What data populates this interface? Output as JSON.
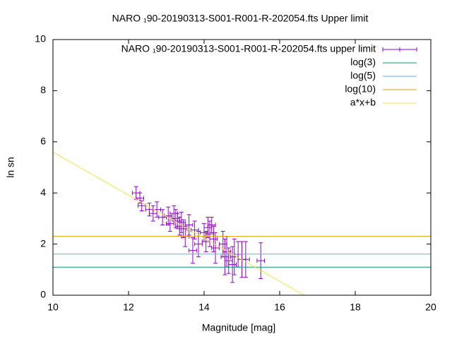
{
  "chart_data": {
    "type": "scatter",
    "title": "NARO ₁90-20190313-S001-R001-R-202054.fts Upper limit",
    "x_label": "Magnitude [mag]",
    "y_label": "ln sn",
    "xlim": [
      10,
      20
    ],
    "xticks": [
      10,
      12,
      14,
      16,
      18,
      20
    ],
    "ylim": [
      0,
      10
    ],
    "yticks": [
      0,
      2,
      4,
      6,
      8,
      10
    ],
    "legend": "top-right",
    "series": [
      {
        "name": "NARO ₁90-20190313-S001-R001-R-202054.fts upper limit",
        "type": "errorbars",
        "color": "#9400d3",
        "x": [
          12.2,
          12.3,
          12.35,
          12.55,
          12.65,
          12.75,
          12.9,
          13.05,
          13.1,
          13.2,
          13.25,
          13.3,
          13.35,
          13.4,
          13.45,
          13.5,
          13.6,
          13.7,
          13.75,
          13.85,
          14.0,
          14.05,
          14.1,
          14.15,
          14.2,
          14.25,
          14.3,
          14.5,
          14.55,
          14.6,
          14.65,
          14.75,
          14.8,
          14.9,
          15.0,
          15.1,
          15.5
        ],
        "values": [
          4.0,
          3.8,
          3.5,
          3.35,
          3.2,
          3.35,
          3.05,
          3.1,
          2.8,
          3.2,
          3.0,
          2.9,
          2.7,
          2.85,
          2.6,
          2.3,
          2.75,
          1.75,
          2.55,
          2.0,
          2.45,
          2.1,
          2.65,
          2.4,
          2.75,
          2.2,
          1.85,
          2.0,
          1.5,
          1.7,
          1.35,
          1.2,
          1.5,
          1.6,
          1.4,
          1.4,
          1.35
        ],
        "errors": [
          0.25,
          0.2,
          0.2,
          0.25,
          0.3,
          0.3,
          0.3,
          0.35,
          0.3,
          0.3,
          0.35,
          0.3,
          0.35,
          0.4,
          0.35,
          0.4,
          0.4,
          0.5,
          0.35,
          0.5,
          0.35,
          0.4,
          0.4,
          0.5,
          0.3,
          0.5,
          0.6,
          0.5,
          0.7,
          0.6,
          0.5,
          0.7,
          0.7,
          0.5,
          0.7,
          0.7,
          0.7
        ],
        "xerrors": [
          0.1,
          0.1,
          0.1,
          0.1,
          0.1,
          0.1,
          0.1,
          0.1,
          0.1,
          0.1,
          0.1,
          0.1,
          0.1,
          0.1,
          0.1,
          0.1,
          0.1,
          0.1,
          0.1,
          0.1,
          0.1,
          0.1,
          0.1,
          0.1,
          0.1,
          0.1,
          0.1,
          0.1,
          0.1,
          0.1,
          0.1,
          0.1,
          0.1,
          0.1,
          0.1,
          0.1,
          0.1
        ]
      },
      {
        "name": "log(3)",
        "type": "line",
        "color": "#009e73",
        "x": [
          10,
          20
        ],
        "values": [
          1.0986,
          1.0986
        ]
      },
      {
        "name": "log(5)",
        "type": "line",
        "color": "#56b4e9",
        "x": [
          10,
          20
        ],
        "values": [
          1.6094,
          1.6094
        ]
      },
      {
        "name": "log(10)",
        "type": "line",
        "color": "#e69f00",
        "x": [
          10,
          20
        ],
        "values": [
          2.3026,
          2.3026
        ]
      },
      {
        "name": "a*x+b",
        "type": "line",
        "color": "#f0e442",
        "x": [
          10,
          16.65
        ],
        "values": [
          5.6,
          0
        ]
      }
    ]
  }
}
